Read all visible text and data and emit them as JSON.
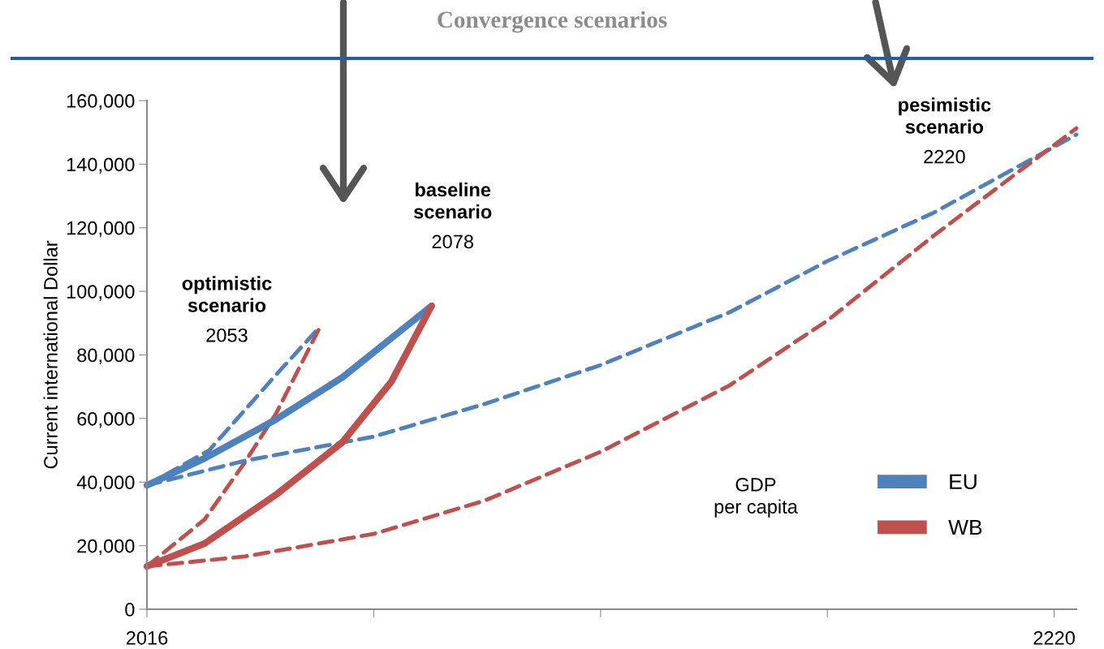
{
  "chart_data": {
    "type": "line",
    "title": "Convergence scenarios",
    "ylabel": "Current international Dollar",
    "legend_title": "GDP\nper capita",
    "xlim": [
      2016,
      2225
    ],
    "xticks": [
      2016,
      {
        "value": 2067,
        "label": null
      },
      {
        "value": 2118,
        "label": null
      },
      {
        "value": 2169,
        "label": null
      },
      2220
    ],
    "ylim": [
      0,
      160000
    ],
    "yticks": [
      {
        "value": 0,
        "label": "0"
      },
      {
        "value": 20000,
        "label": "20,000"
      },
      {
        "value": 40000,
        "label": "40,000"
      },
      {
        "value": 60000,
        "label": "60,000"
      },
      {
        "value": 80000,
        "label": "80,000"
      },
      {
        "value": 100000,
        "label": "100,000"
      },
      {
        "value": 120000,
        "label": "120,000"
      },
      {
        "value": 140000,
        "label": "140,000"
      },
      {
        "value": 160000,
        "label": "160,000"
      }
    ],
    "grid": false,
    "legend": "bottom right",
    "marker": "none",
    "series": [
      {
        "color": "#4f81bd",
        "line_style": "dashed",
        "x": [
          2016,
          2030,
          2045,
          2055
        ],
        "values": [
          39000,
          50000,
          73700,
          89000
        ]
      },
      {
        "color": "#c0504d",
        "line_style": "dashed",
        "x": [
          2016,
          2029,
          2038,
          2045,
          2055
        ],
        "values": [
          13500,
          28300,
          46200,
          61500,
          89000
        ]
      },
      {
        "color": "#4f81bd",
        "line_style": "dashed",
        "x": [
          2016,
          2038,
          2067,
          2092,
          2118,
          2147,
          2169,
          2193,
          2225
        ],
        "values": [
          39000,
          46700,
          54300,
          64600,
          76800,
          93400,
          109500,
          124800,
          149300
        ]
      },
      {
        "color": "#c0504d",
        "line_style": "dashed",
        "x": [
          2016,
          2038,
          2067,
          2092,
          2118,
          2147,
          2169,
          2193,
          2225
        ],
        "values": [
          13500,
          16600,
          23700,
          34200,
          49500,
          70400,
          90800,
          117600,
          151300
        ]
      },
      {
        "name": "EU",
        "color": "#4f81bd",
        "line_style": "solid",
        "x": [
          2016,
          2029,
          2045,
          2060,
          2080
        ],
        "values": [
          39000,
          47500,
          59700,
          73000,
          95400
        ]
      },
      {
        "name": "WB",
        "color": "#c0504d",
        "line_style": "solid",
        "x": [
          2016,
          2029,
          2045,
          2060,
          2071,
          2080
        ],
        "values": [
          13500,
          20700,
          36000,
          52600,
          71700,
          95400
        ]
      }
    ],
    "annotations": [
      "optimistic\nscenario\n2053",
      "baseline\nscenario\n2078",
      "pesimistic\nscenario\n2220"
    ]
  }
}
